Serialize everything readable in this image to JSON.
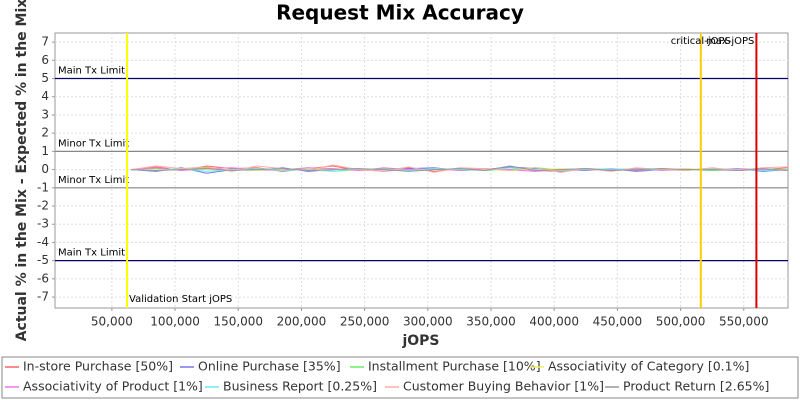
{
  "chart_data": {
    "type": "line",
    "title": "Request Mix Accuracy",
    "x_label": "jOPS",
    "y_label": "Actual % in the Mix - Expected % in the Mix",
    "x": [
      65000,
      85000,
      105000,
      125000,
      145000,
      165000,
      185000,
      205000,
      225000,
      245000,
      265000,
      285000,
      305000,
      325000,
      345000,
      365000,
      385000,
      405000,
      425000,
      445000,
      465000,
      485000,
      505000,
      525000,
      545000,
      565000,
      585000
    ],
    "series": [
      {
        "name": "In-store Purchase [50%]",
        "color": "#ff6666",
        "values": [
          0,
          0.15,
          -0.05,
          0.2,
          0.05,
          0.1,
          -0.1,
          0.05,
          0.2,
          -0.05,
          0,
          0.1,
          -0.1,
          0.05,
          0,
          0.1,
          -0.05,
          -0.1,
          0.05,
          0,
          -0.05,
          0.05,
          0,
          0.05,
          -0.05,
          0,
          0.1
        ]
      },
      {
        "name": "Online Purchase [35%]",
        "color": "#7777ee",
        "values": [
          0,
          -0.1,
          0.1,
          -0.2,
          0,
          -0.05,
          0.1,
          -0.1,
          0,
          0.05,
          -0.1,
          0.05,
          0.1,
          -0.05,
          0,
          0.15,
          0.05,
          0,
          -0.05,
          0.05,
          -0.1,
          0,
          0.05,
          -0.05,
          0.05,
          -0.1,
          0
        ]
      },
      {
        "name": "Installment Purchase [10%]",
        "color": "#66ee66",
        "values": [
          0,
          0.05,
          0,
          0.1,
          -0.05,
          0.05,
          0,
          0.1,
          -0.1,
          0,
          0.05,
          -0.05,
          0,
          0.05,
          -0.05,
          0,
          0.1,
          0,
          0.05,
          -0.05,
          0,
          0.05,
          0,
          -0.05,
          0,
          0.05,
          0
        ]
      },
      {
        "name": "Associativity of Category [0.1%]",
        "color": "#f5f066",
        "values": [
          0,
          0,
          0.05,
          0,
          0,
          -0.05,
          0,
          0.05,
          0,
          0,
          0,
          -0.05,
          0.05,
          0,
          0,
          -0.05,
          0,
          0.05,
          0,
          0,
          0,
          0,
          0.05,
          0,
          0,
          0,
          0
        ]
      },
      {
        "name": "Associativity of Product [1%]",
        "color": "#ee77ee",
        "values": [
          0,
          0.1,
          -0.05,
          0.05,
          0.1,
          0,
          -0.05,
          0.1,
          0.05,
          -0.05,
          0.1,
          0,
          0.05,
          -0.05,
          0.05,
          0,
          -0.1,
          0,
          0.05,
          0,
          0.05,
          -0.05,
          0,
          0,
          0.05,
          0,
          -0.05
        ]
      },
      {
        "name": "Business Report [0.25%]",
        "color": "#66eeee",
        "values": [
          0,
          -0.05,
          0.05,
          -0.1,
          0,
          0.05,
          -0.05,
          0,
          -0.1,
          0.05,
          0,
          -0.05,
          0.05,
          0,
          -0.05,
          0.1,
          0,
          -0.05,
          0,
          0.05,
          0,
          0,
          -0.05,
          0.05,
          0,
          -0.05,
          0
        ]
      },
      {
        "name": "Customer Buying Behavior [1%]",
        "color": "#ffaaaa",
        "values": [
          0,
          0.2,
          0.05,
          0.15,
          -0.1,
          0.2,
          0.05,
          -0.05,
          0.25,
          0,
          -0.1,
          0.15,
          -0.15,
          0.1,
          0.05,
          -0.05,
          0.1,
          -0.15,
          0.05,
          -0.1,
          0.1,
          0,
          -0.05,
          0.1,
          -0.05,
          0.1,
          0.15
        ]
      },
      {
        "name": "Product Return [2.65%]",
        "color": "#999999",
        "values": [
          0,
          -0.05,
          0,
          0.05,
          -0.05,
          0,
          0.05,
          -0.05,
          0,
          0.05,
          0,
          -0.1,
          0,
          0.05,
          -0.05,
          0.2,
          -0.05,
          0,
          0.05,
          -0.05,
          0,
          0.05,
          0,
          0,
          -0.05,
          0.05,
          -0.05
        ]
      }
    ],
    "xlim": [
      5000,
      585000
    ],
    "ylim": [
      -7.6,
      7.5
    ],
    "xticks": [
      {
        "value": 50000,
        "label": "50,000"
      },
      {
        "value": 100000,
        "label": "100,000"
      },
      {
        "value": 150000,
        "label": "150,000"
      },
      {
        "value": 200000,
        "label": "200,000"
      },
      {
        "value": 250000,
        "label": "250,000"
      },
      {
        "value": 300000,
        "label": "300,000"
      },
      {
        "value": 350000,
        "label": "350,000"
      },
      {
        "value": 400000,
        "label": "400,000"
      },
      {
        "value": 450000,
        "label": "450,000"
      },
      {
        "value": 500000,
        "label": "500,000"
      },
      {
        "value": 550000,
        "label": "550,000"
      }
    ],
    "yticks": [
      7,
      6,
      5,
      4,
      3,
      2,
      1,
      0,
      -1,
      -2,
      -3,
      -4,
      -5,
      -6,
      -7
    ],
    "grid": true,
    "reference_lines": [
      {
        "value": 5,
        "label": "Main Tx Limit",
        "color": "#000066"
      },
      {
        "value": 1,
        "label": "Minor Tx Limit",
        "color": "#888888"
      },
      {
        "value": -1,
        "label": "Minor Tx Limit",
        "color": "#888888"
      },
      {
        "value": -5,
        "label": "Main Tx Limit",
        "color": "#000066"
      }
    ],
    "vertical_markers": [
      {
        "value": 62000,
        "label": "Validation Start jOPS",
        "color": "#ffff00"
      },
      {
        "value": 516000,
        "label": "critical-jOPS",
        "color": "#ffcc00"
      },
      {
        "value": 560000,
        "label": "max-jOPS",
        "color": "#dd0000"
      }
    ]
  }
}
